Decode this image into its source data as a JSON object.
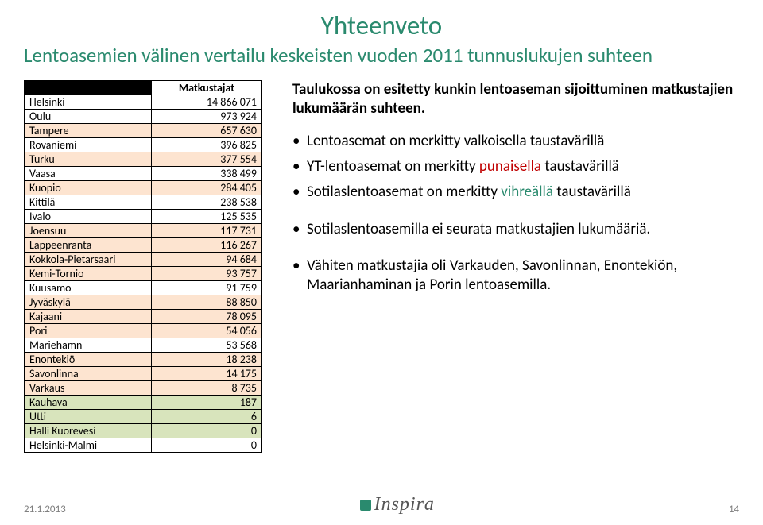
{
  "colors": {
    "title": "#2a8a6e",
    "subtitle": "#2a8a6e",
    "row_normal_bg": "#ffffff",
    "row_yt_bg": "#fde4d0",
    "row_mil_bg": "#d8e4bc",
    "red": "#c00000",
    "green": "#2a8a6e",
    "text": "#000000",
    "footer": "#7f7f7f",
    "logo": "#555555"
  },
  "title": "Yhteenveto",
  "subtitle": "Lentoasemien välinen vertailu keskeisten vuoden 2011 tunnuslukujen suhteen",
  "table": {
    "header": "Matkustajat",
    "rows": [
      {
        "name": "Helsinki",
        "val": "14 866 071",
        "kind": "normal"
      },
      {
        "name": "Oulu",
        "val": "973 924",
        "kind": "normal"
      },
      {
        "name": "Tampere",
        "val": "657 630",
        "kind": "yt"
      },
      {
        "name": "Rovaniemi",
        "val": "396 825",
        "kind": "normal"
      },
      {
        "name": "Turku",
        "val": "377 554",
        "kind": "yt"
      },
      {
        "name": "Vaasa",
        "val": "338 499",
        "kind": "normal"
      },
      {
        "name": "Kuopio",
        "val": "284 405",
        "kind": "yt"
      },
      {
        "name": "Kittilä",
        "val": "238 538",
        "kind": "normal"
      },
      {
        "name": "Ivalo",
        "val": "125 535",
        "kind": "normal"
      },
      {
        "name": "Joensuu",
        "val": "117 731",
        "kind": "yt"
      },
      {
        "name": "Lappeenranta",
        "val": "116 267",
        "kind": "yt"
      },
      {
        "name": "Kokkola-Pietarsaari",
        "val": "94 684",
        "kind": "yt"
      },
      {
        "name": "Kemi-Tornio",
        "val": "93 757",
        "kind": "yt"
      },
      {
        "name": "Kuusamo",
        "val": "91 759",
        "kind": "normal"
      },
      {
        "name": "Jyväskylä",
        "val": "88 850",
        "kind": "yt"
      },
      {
        "name": "Kajaani",
        "val": "78 095",
        "kind": "yt"
      },
      {
        "name": "Pori",
        "val": "54 056",
        "kind": "yt"
      },
      {
        "name": "Mariehamn",
        "val": "53 568",
        "kind": "normal"
      },
      {
        "name": "Enontekiö",
        "val": "18 238",
        "kind": "yt"
      },
      {
        "name": "Savonlinna",
        "val": "14 175",
        "kind": "yt"
      },
      {
        "name": "Varkaus",
        "val": "8 735",
        "kind": "yt"
      },
      {
        "name": "Kauhava",
        "val": "187",
        "kind": "mil"
      },
      {
        "name": "Utti",
        "val": "6",
        "kind": "mil"
      },
      {
        "name": "Halli Kuorevesi",
        "val": "0",
        "kind": "mil"
      },
      {
        "name": "Helsinki-Malmi",
        "val": "0",
        "kind": "normal"
      }
    ]
  },
  "intro": "Taulukossa on esitetty kunkin lentoaseman sijoittuminen matkustajien lukumäärän suhteen.",
  "bullets": {
    "b1": "Lentoasemat on merkitty valkoisella taustavärillä",
    "b2_a": "YT-lentoasemat on merkitty ",
    "b2_b": "punaisella ",
    "b2_c": "taustavärillä",
    "b3_a": "Sotilaslentoasemat on merkitty ",
    "b3_b": "vihreällä ",
    "b3_c": "taustavärillä",
    "b4": "Sotilaslentoasemilla ei seurata matkustajien lukumääriä.",
    "b5": "Vähiten matkustajia oli Varkauden, Savonlinnan, Enontekiön, Maarianhaminan ja Porin lentoasemilla."
  },
  "footer": {
    "date": "21.1.2013",
    "logo": "Inspira",
    "page": "14"
  }
}
